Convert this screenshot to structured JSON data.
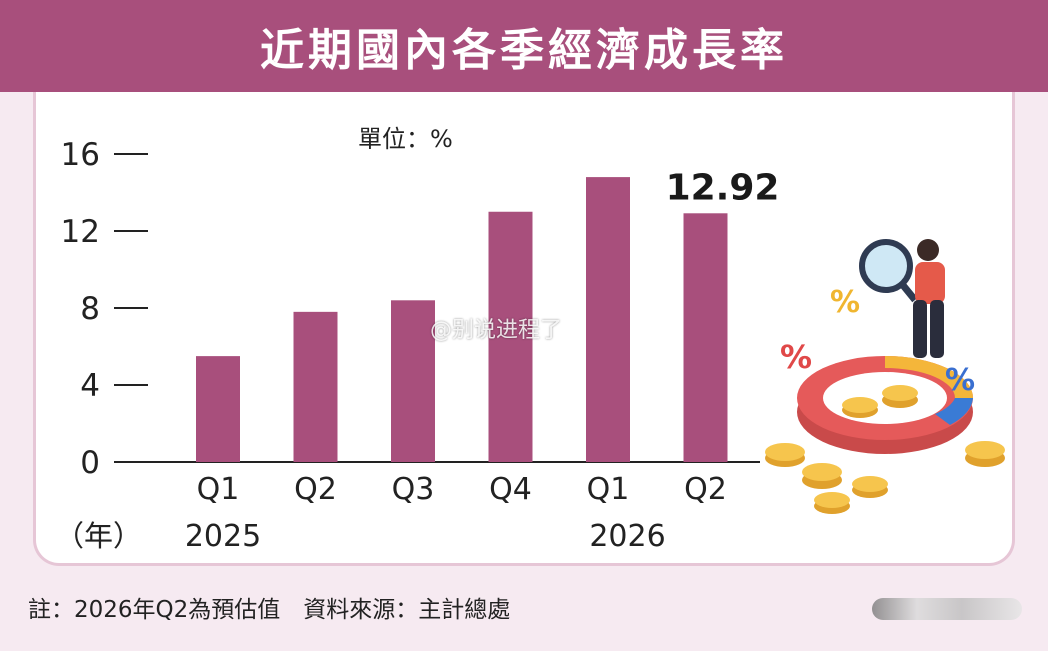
{
  "title": "近期國內各季經濟成長率",
  "unit_label": "單位：%",
  "footer_note": "註：2026年Q2為預估值　資料來源：主計總處",
  "watermark": "@别说进程了",
  "colors": {
    "title_bg": "#a84f7c",
    "bar": "#a84f7c",
    "panel_border": "#e6c6d6",
    "page_bg": "#f6eaf1"
  },
  "chart_data": {
    "type": "bar",
    "title": "近期國內各季經濟成長率",
    "ylabel": "單位：%",
    "xlabel": "（年）",
    "ylim": [
      0,
      16
    ],
    "yticks": [
      0,
      4,
      8,
      12,
      16
    ],
    "categories": [
      "Q1",
      "Q2",
      "Q3",
      "Q4",
      "Q1",
      "Q2"
    ],
    "years": [
      {
        "label": "2025",
        "from_index": 0,
        "to_index": 3
      },
      {
        "label": "2026",
        "from_index": 4,
        "to_index": 5
      }
    ],
    "values": [
      5.5,
      7.8,
      8.4,
      13.0,
      14.8,
      12.92
    ],
    "data_labels": [
      {
        "index": 5,
        "text": "12.92"
      }
    ],
    "grid": false,
    "legend": "none"
  }
}
